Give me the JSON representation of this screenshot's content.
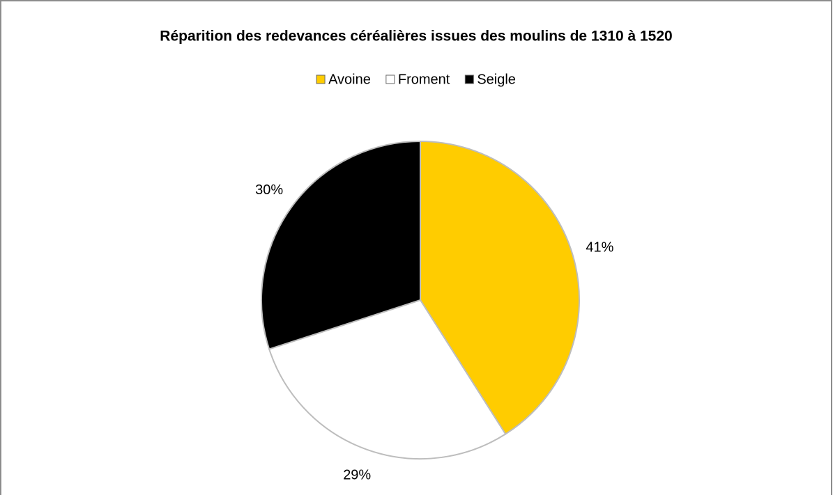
{
  "chart_data": {
    "type": "pie",
    "title": "Réparition des redevances céréalières issues des moulins de 1310 à 1520",
    "categories": [
      "Avoine",
      "Froment",
      "Seigle"
    ],
    "values": [
      41,
      29,
      30
    ],
    "value_labels": [
      "41%",
      "29%",
      "30%"
    ],
    "colors": [
      "#ffcc00",
      "#ffffff",
      "#000000"
    ],
    "legend": "top"
  }
}
